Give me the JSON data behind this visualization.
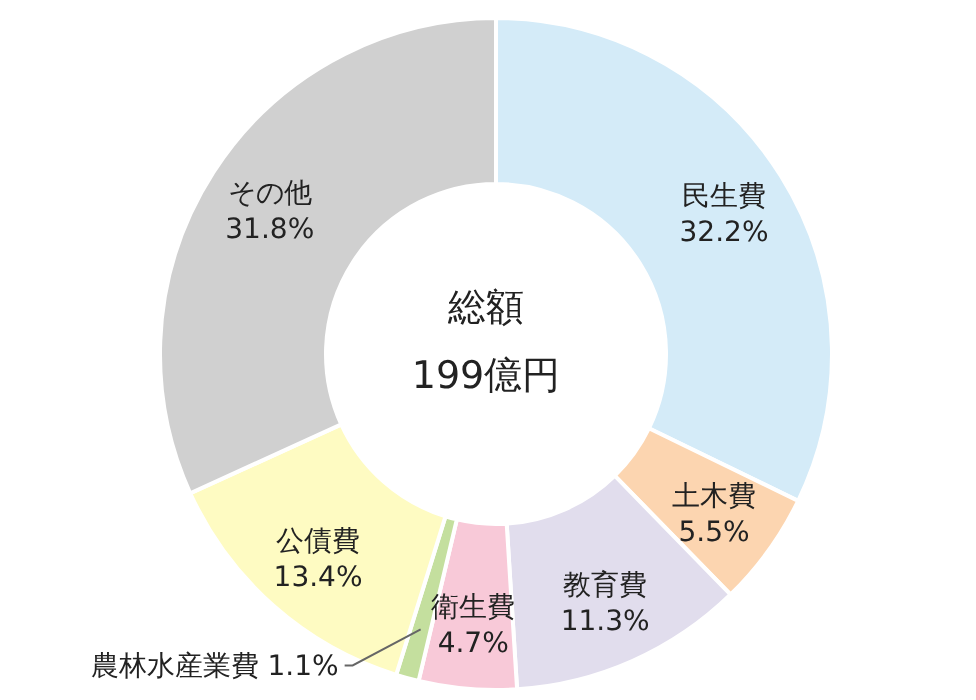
{
  "chart_data": {
    "type": "donut",
    "categories": [
      "民生費",
      "土木費",
      "教育費",
      "衛生費",
      "農林水産業費",
      "公債費",
      "その他"
    ],
    "values": [
      32.2,
      5.5,
      11.3,
      4.7,
      1.1,
      13.4,
      31.8
    ],
    "value_labels": [
      "32.2%",
      "5.5%",
      "11.3%",
      "4.7%",
      "1.1%",
      "13.4%",
      "31.8%"
    ],
    "colors": [
      "#d4ebf8",
      "#fcd5b0",
      "#e1dded",
      "#f8c9d8",
      "#c4df9e",
      "#fefbc2",
      "#d0d0d0"
    ],
    "annotations": [
      "総額",
      "199億円"
    ],
    "legend": false
  }
}
